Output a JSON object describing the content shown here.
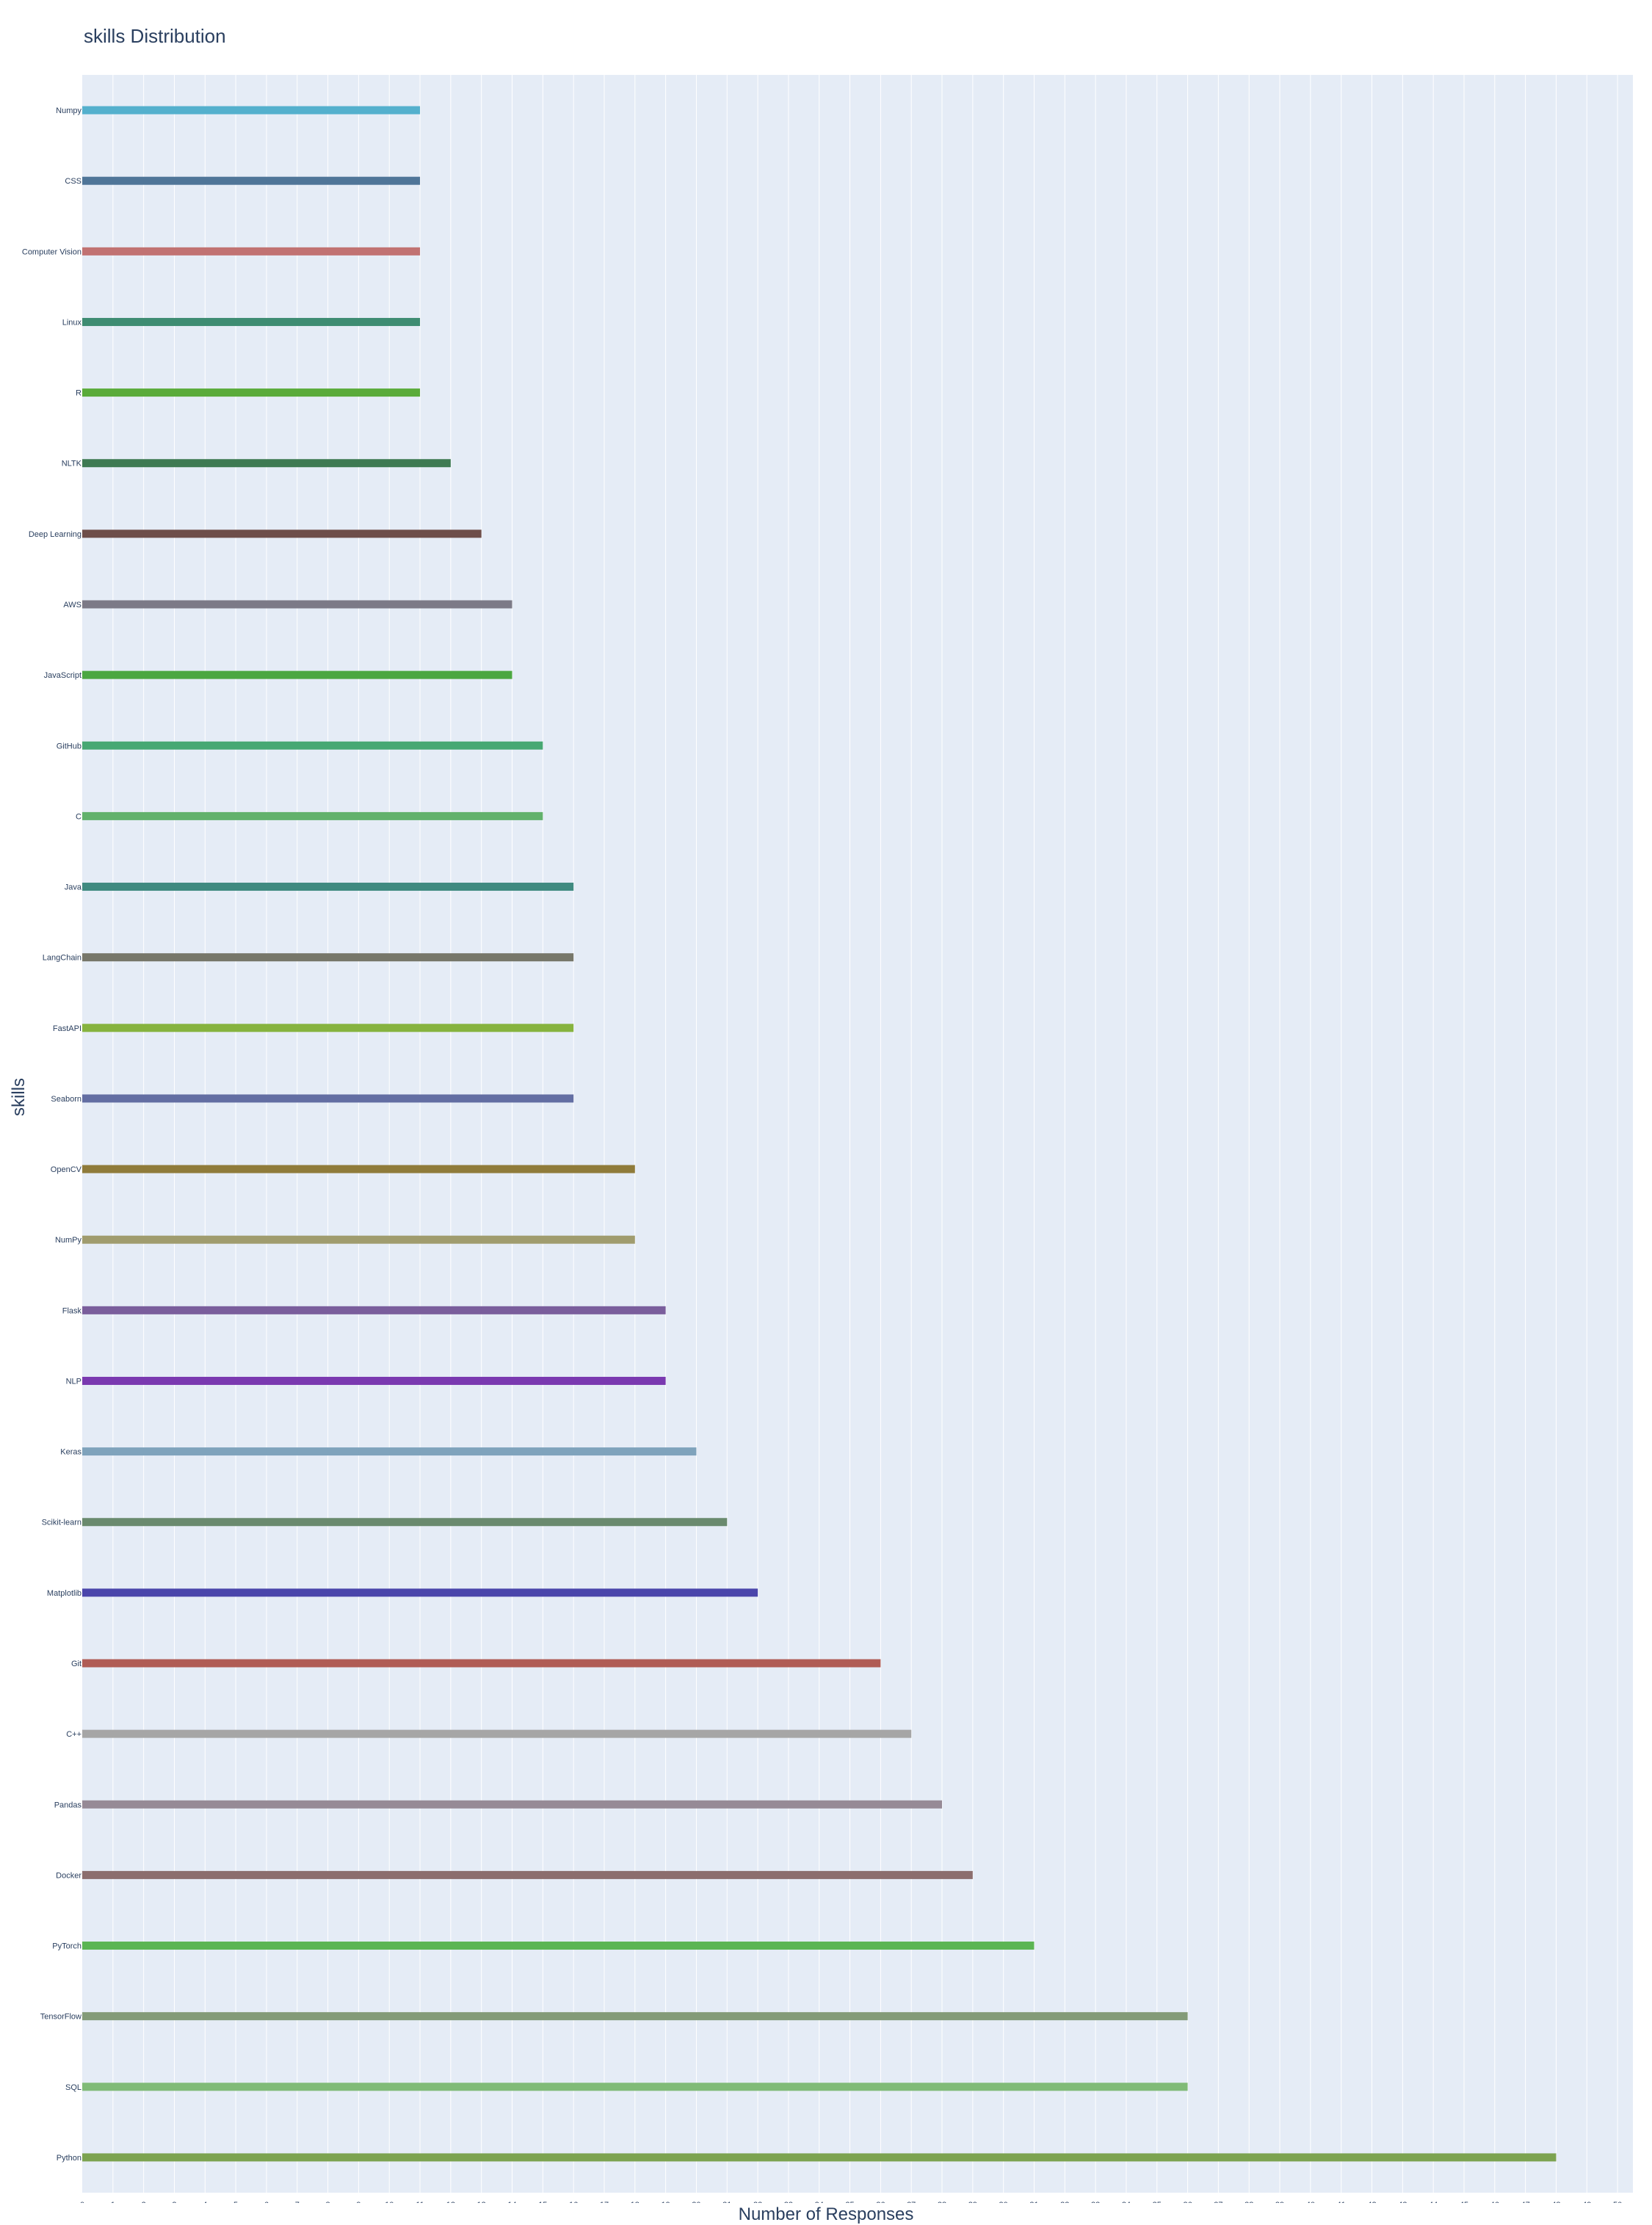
{
  "chart_data": {
    "type": "bar",
    "orientation": "horizontal",
    "title": "skills Distribution",
    "xlabel": "Number of Responses",
    "ylabel": "skills",
    "xlim": [
      0,
      50.5
    ],
    "x_ticks": [
      0,
      1,
      2,
      3,
      4,
      5,
      6,
      7,
      8,
      9,
      10,
      11,
      12,
      13,
      14,
      15,
      16,
      17,
      18,
      19,
      20,
      21,
      22,
      23,
      24,
      25,
      26,
      27,
      28,
      29,
      30,
      31,
      32,
      33,
      34,
      35,
      36,
      37,
      38,
      39,
      40,
      41,
      42,
      43,
      44,
      45,
      46,
      47,
      48,
      49,
      50
    ],
    "grid": true,
    "categories": [
      "Numpy",
      "CSS",
      "Computer Vision",
      "Linux",
      "R",
      "NLTK",
      "Deep Learning",
      "AWS",
      "JavaScript",
      "GitHub",
      "C",
      "Java",
      "LangChain",
      "FastAPI",
      "Seaborn",
      "OpenCV",
      "NumPy",
      "Flask",
      "NLP",
      "Keras",
      "Scikit-learn",
      "Matplotlib",
      "Git",
      "C++",
      "Pandas",
      "Docker",
      "PyTorch",
      "TensorFlow",
      "SQL",
      "Python"
    ],
    "values": [
      11,
      11,
      11,
      11,
      11,
      12,
      13,
      14,
      14,
      15,
      15,
      16,
      16,
      16,
      16,
      18,
      18,
      19,
      19,
      20,
      21,
      22,
      26,
      27,
      28,
      29,
      31,
      36,
      36,
      48
    ],
    "colors": [
      "#54b0cd",
      "#4f7598",
      "#c17272",
      "#3e8c72",
      "#5aab3a",
      "#3e7a52",
      "#6e4e4a",
      "#7c7a87",
      "#4ba741",
      "#47a873",
      "#62b16c",
      "#3f8a80",
      "#77776a",
      "#86b33f",
      "#636ea3",
      "#8f7b3a",
      "#a09c6e",
      "#7a5e9c",
      "#7a39b0",
      "#7fa3bc",
      "#6a8a6e",
      "#4a45ab",
      "#b05c55",
      "#a6a6a6",
      "#968a96",
      "#8c6e6e",
      "#5bb553",
      "#839b78",
      "#80bb77",
      "#7ca350"
    ]
  }
}
